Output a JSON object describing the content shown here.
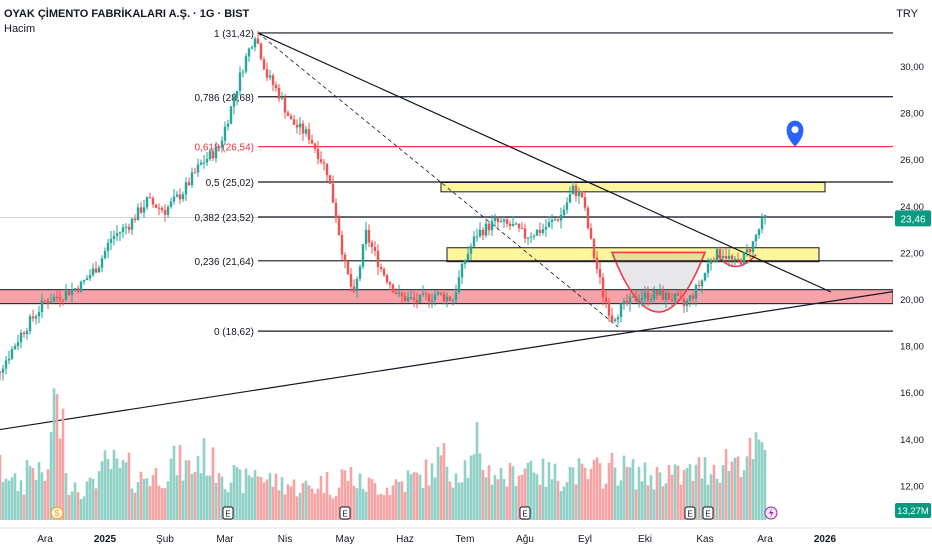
{
  "header": {
    "title": "OYAK ÇİMENTO FABRİKALARI A.Ş. · 1G · BIST",
    "subtitle": "Hacim",
    "currency": "TRY"
  },
  "colors": {
    "up": "#26a69a",
    "down": "#ef5350",
    "volume_up": "#8fd1c6",
    "volume_down": "#f5a3a3",
    "fib_red": "#f23645",
    "zone_yellow": "#fff59d",
    "zone_red": "#f7a1a8",
    "price_badge": "#089981",
    "marker_blue": "#2962ff"
  },
  "chart_data": {
    "type": "candlestick",
    "price_axis": {
      "min": 11.3,
      "max": 32.6,
      "ticks": [
        12,
        14,
        16,
        18,
        20,
        22,
        24,
        26,
        28,
        30
      ],
      "tick_labels": [
        "12,00",
        "14,00",
        "16,00",
        "18,00",
        "20,00",
        "22,00",
        "24,00",
        "26,00",
        "28,00",
        "30,00"
      ]
    },
    "time_axis": {
      "labels": [
        {
          "m": 0,
          "text": "Ara"
        },
        {
          "m": 1,
          "text": "2025"
        },
        {
          "m": 2,
          "text": "Şub"
        },
        {
          "m": 3,
          "text": "Mar"
        },
        {
          "m": 4,
          "text": "Nis"
        },
        {
          "m": 5,
          "text": "May"
        },
        {
          "m": 6,
          "text": "Haz"
        },
        {
          "m": 7,
          "text": "Tem"
        },
        {
          "m": 8,
          "text": "Ağu"
        },
        {
          "m": 9,
          "text": "Eyl"
        },
        {
          "m": 10,
          "text": "Eki"
        },
        {
          "m": 11,
          "text": "Kas"
        },
        {
          "m": 12,
          "text": "Ara"
        },
        {
          "m": 13,
          "text": "2026"
        }
      ]
    },
    "price_path": [
      [
        -1.0,
        16.1
      ],
      [
        -0.8,
        16.8
      ],
      [
        -0.6,
        17.6
      ],
      [
        -0.4,
        18.5
      ],
      [
        -0.2,
        19.2
      ],
      [
        0.0,
        19.9
      ],
      [
        0.3,
        20.2
      ],
      [
        0.6,
        20.6
      ],
      [
        0.9,
        21.5
      ],
      [
        1.1,
        22.6
      ],
      [
        1.4,
        23.2
      ],
      [
        1.7,
        24.2
      ],
      [
        2.0,
        23.8
      ],
      [
        2.3,
        24.6
      ],
      [
        2.6,
        25.8
      ],
      [
        2.9,
        26.5
      ],
      [
        3.1,
        28.2
      ],
      [
        3.3,
        30.0
      ],
      [
        3.5,
        31.4
      ],
      [
        3.7,
        29.6
      ],
      [
        3.9,
        28.8
      ],
      [
        4.1,
        27.6
      ],
      [
        4.4,
        27.0
      ],
      [
        4.7,
        25.5
      ],
      [
        4.85,
        23.6
      ],
      [
        5.0,
        21.4
      ],
      [
        5.15,
        20.1
      ],
      [
        5.35,
        22.8
      ],
      [
        5.6,
        21.3
      ],
      [
        5.9,
        20.1
      ],
      [
        6.2,
        19.9
      ],
      [
        6.5,
        20.2
      ],
      [
        6.8,
        20.0
      ],
      [
        7.0,
        21.7
      ],
      [
        7.2,
        22.8
      ],
      [
        7.5,
        23.3
      ],
      [
        7.8,
        23.1
      ],
      [
        8.0,
        22.7
      ],
      [
        8.3,
        23.0
      ],
      [
        8.6,
        23.6
      ],
      [
        8.8,
        24.7
      ],
      [
        8.95,
        24.4
      ],
      [
        9.1,
        22.4
      ],
      [
        9.3,
        20.2
      ],
      [
        9.45,
        19.2
      ],
      [
        9.6,
        19.6
      ],
      [
        9.9,
        20.1
      ],
      [
        10.2,
        20.2
      ],
      [
        10.5,
        20.0
      ],
      [
        10.65,
        19.7
      ],
      [
        10.8,
        20.2
      ],
      [
        10.95,
        20.8
      ],
      [
        11.1,
        21.8
      ],
      [
        11.3,
        22.0
      ],
      [
        11.5,
        21.5
      ],
      [
        11.65,
        21.8
      ],
      [
        11.8,
        22.4
      ],
      [
        11.9,
        23.0
      ],
      [
        12.0,
        23.46
      ]
    ],
    "volume_levels": [
      0.28,
      0.45,
      0.33,
      0.5,
      0.4,
      0.9,
      0.35,
      0.3,
      0.42,
      0.5,
      0.46,
      0.38,
      0.41,
      0.44,
      0.52,
      0.48,
      0.58,
      0.5,
      0.4,
      0.36,
      0.45,
      0.37,
      0.34,
      0.31,
      0.3,
      0.35,
      0.3,
      0.41,
      0.33,
      0.32,
      0.3,
      0.35,
      0.38,
      0.43,
      0.55,
      0.46,
      0.5,
      0.52,
      0.44,
      0.4,
      0.48,
      0.53,
      0.42,
      0.41,
      0.45,
      0.4,
      0.44,
      0.48,
      0.46,
      0.43,
      0.4,
      0.45,
      0.4,
      0.43,
      0.47,
      0.5,
      0.55,
      0.58,
      0.62
    ],
    "fib_levels": [
      {
        "price": 31.42,
        "label": "1 (31,42)",
        "color": "#131722"
      },
      {
        "price": 28.68,
        "label": "0,786 (28,68)",
        "color": "#131722"
      },
      {
        "price": 26.54,
        "label": "0,618 (26,54)",
        "color": "#f23645"
      },
      {
        "price": 25.02,
        "label": "0,5 (25,02)",
        "color": "#131722"
      },
      {
        "price": 23.52,
        "label": "0,382 (23,52)",
        "color": "#131722"
      },
      {
        "price": 21.64,
        "label": "0,236 (21,64)",
        "color": "#131722"
      },
      {
        "price": 18.62,
        "label": "0 (18,62)",
        "color": "#131722"
      }
    ],
    "zones": [
      {
        "m1": 6.6,
        "m2": 13.0,
        "p1": 24.6,
        "p2": 25.0,
        "color": "#fff59d"
      },
      {
        "m1": 6.7,
        "m2": 12.9,
        "p1": 21.6,
        "p2": 22.2,
        "color": "#fff59d"
      },
      {
        "m1": -1.2,
        "m2": 14.2,
        "p1": 19.8,
        "p2": 20.4,
        "color": "#f7a1a8"
      }
    ],
    "trendlines": [
      {
        "m1": 3.55,
        "p1": 31.42,
        "m2": 13.1,
        "p2": 20.3,
        "dashed": false
      },
      {
        "m1": 3.55,
        "p1": 31.42,
        "m2": 9.55,
        "p2": 18.8,
        "dashed": true
      },
      {
        "m1": -2.0,
        "p1": 13.9,
        "m2": 14.6,
        "p2": 20.5,
        "dashed": false
      }
    ],
    "last_price": 23.46,
    "last_price_label": "23,46",
    "volume_label": "13,27M",
    "event_markers": [
      {
        "m": -1.0,
        "type": "E"
      },
      {
        "m": 0.2,
        "type": "S"
      },
      {
        "m": 3.05,
        "type": "E"
      },
      {
        "m": 5.0,
        "type": "E"
      },
      {
        "m": 8.0,
        "type": "E"
      },
      {
        "m": 10.75,
        "type": "E"
      },
      {
        "m": 11.05,
        "type": "E"
      },
      {
        "m": 12.1,
        "type": "lightning"
      }
    ]
  }
}
